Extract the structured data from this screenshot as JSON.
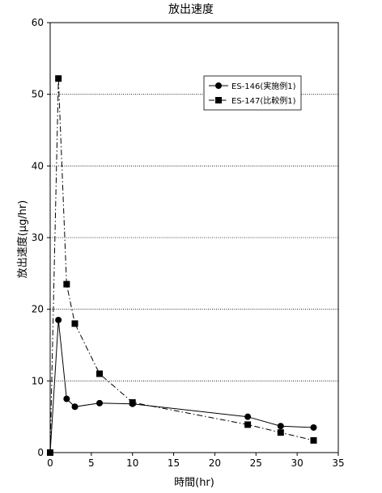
{
  "chart_data": {
    "type": "line",
    "title": "放出速度",
    "xlabel": "時間(hr)",
    "ylabel": "放出速度(μg/hr)",
    "xlim": [
      0,
      35
    ],
    "ylim": [
      0,
      60
    ],
    "x_ticks": [
      0,
      5,
      10,
      15,
      20,
      25,
      30,
      35
    ],
    "y_ticks": [
      0,
      10,
      20,
      30,
      40,
      50,
      60
    ],
    "grid": "horizontal",
    "legend_position": "top-right",
    "series": [
      {
        "name": "ES-146(実施例1)",
        "marker": "circle",
        "line_style": "solid",
        "x": [
          0,
          1,
          2,
          3,
          6,
          10,
          24,
          28,
          32
        ],
        "y": [
          0,
          18.5,
          7.5,
          6.4,
          6.9,
          6.8,
          5.0,
          3.7,
          3.5
        ]
      },
      {
        "name": "ES-147(比較例1)",
        "marker": "square",
        "line_style": "dash-dot",
        "x": [
          0,
          1,
          2,
          3,
          6,
          10,
          24,
          28,
          32
        ],
        "y": [
          0,
          52.2,
          23.5,
          18.0,
          11.0,
          7.0,
          3.9,
          2.8,
          1.7
        ]
      }
    ]
  }
}
